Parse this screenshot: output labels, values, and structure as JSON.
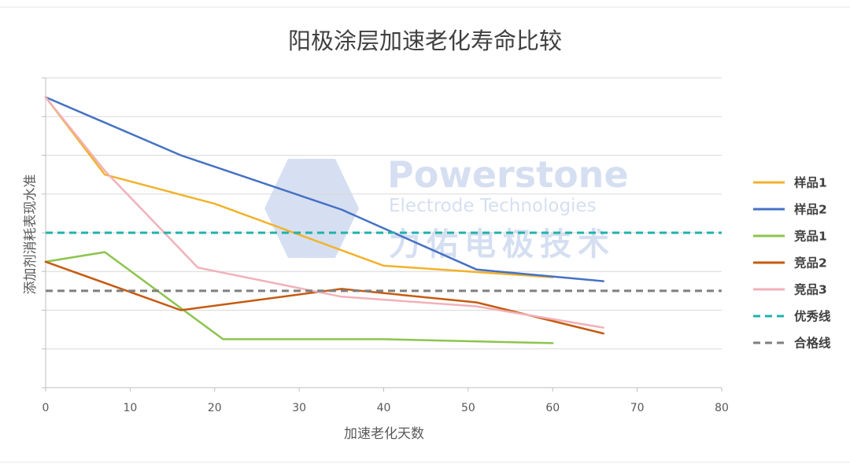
{
  "chart_data": {
    "type": "line",
    "title": "阳极涂层加速老化寿命比较",
    "xlabel": "加速老化天数",
    "ylabel": "添加剂消耗表现水准",
    "xlim": [
      0,
      80
    ],
    "x_ticks": [
      0,
      10,
      20,
      30,
      40,
      50,
      60,
      70,
      80
    ],
    "ylim": [
      0,
      8
    ],
    "y_tick_labels_visible": false,
    "grid": "horizontal",
    "legend_position": "right",
    "series": [
      {
        "name": "样品1",
        "color": "#F2B22B",
        "dash": "solid",
        "points": [
          [
            0,
            7.5
          ],
          [
            7,
            5.5
          ],
          [
            20,
            4.75
          ],
          [
            40,
            3.15
          ],
          [
            60,
            2.85
          ]
        ]
      },
      {
        "name": "样品2",
        "color": "#4671C4",
        "dash": "solid",
        "points": [
          [
            0,
            7.5
          ],
          [
            16,
            6.0
          ],
          [
            35,
            4.6
          ],
          [
            51,
            3.05
          ],
          [
            66,
            2.75
          ]
        ]
      },
      {
        "name": "竞品1",
        "color": "#8CC44E",
        "dash": "solid",
        "points": [
          [
            0,
            3.25
          ],
          [
            7,
            3.5
          ],
          [
            21,
            1.25
          ],
          [
            40,
            1.25
          ],
          [
            60,
            1.15
          ]
        ]
      },
      {
        "name": "竞品2",
        "color": "#C55A11",
        "dash": "solid",
        "points": [
          [
            0,
            3.25
          ],
          [
            16,
            2.0
          ],
          [
            35,
            2.55
          ],
          [
            51,
            2.2
          ],
          [
            66,
            1.4
          ]
        ]
      },
      {
        "name": "竞品3",
        "color": "#F1B1B9",
        "dash": "solid",
        "points": [
          [
            0,
            7.5
          ],
          [
            7,
            5.6
          ],
          [
            18,
            3.1
          ],
          [
            35,
            2.35
          ],
          [
            51,
            2.1
          ],
          [
            66,
            1.55
          ]
        ]
      },
      {
        "name": "优秀线",
        "color": "#20B2AA",
        "dash": "dashed",
        "points": [
          [
            0,
            4.0
          ],
          [
            80,
            4.0
          ]
        ]
      },
      {
        "name": "合格线",
        "color": "#7F7F7F",
        "dash": "dashed",
        "points": [
          [
            0,
            2.5
          ],
          [
            80,
            2.5
          ]
        ]
      }
    ]
  },
  "watermark": {
    "brand": "Powerstone",
    "subtitle": "Electrode Technologies",
    "chinese": "力佑电极技术"
  },
  "colors": {
    "background": "#FFFFFF",
    "grid": "#D9D9D9",
    "axis": "#BFBFBF",
    "text": "#595959",
    "watermark": "#B4C6E7"
  }
}
